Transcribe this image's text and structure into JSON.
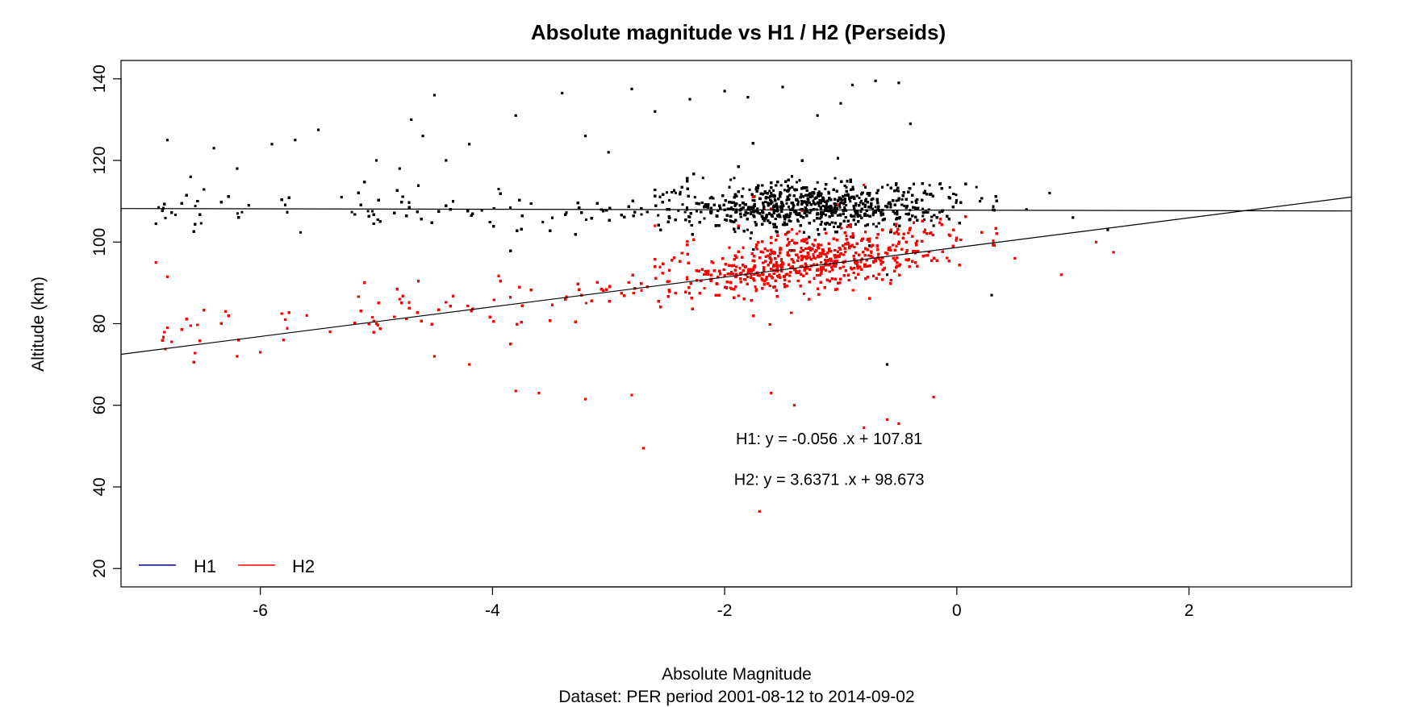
{
  "chart_data": {
    "type": "scatter",
    "title": "Absolute magnitude vs H1 / H2 (Perseids)",
    "xlabel": "Absolute Magnitude",
    "subtitle": "Dataset: PER period 2001-08-12 to 2014-09-02",
    "ylabel": "Altitude (km)",
    "xlim": [
      -7.2,
      3.4
    ],
    "ylim": [
      15.5,
      144.5
    ],
    "x_ticks": [
      -6,
      -4,
      -2,
      0,
      2
    ],
    "y_ticks": [
      20,
      40,
      60,
      80,
      100,
      120,
      140
    ],
    "grid": false,
    "legend_position": "bottom-left",
    "series": [
      {
        "name": "H1",
        "color": "#000000",
        "legend_color": "#00008B",
        "fit": {
          "slope": -0.056,
          "intercept": 107.81
        },
        "points": [
          [
            -6.9,
            104.5
          ],
          [
            -6.8,
            125.0
          ],
          [
            -6.6,
            116.0
          ],
          [
            -6.4,
            123.0
          ],
          [
            -6.2,
            118.0
          ],
          [
            -6.1,
            109.0
          ],
          [
            -5.9,
            124.0
          ],
          [
            -5.7,
            125.0
          ],
          [
            -5.5,
            127.5
          ],
          [
            -5.3,
            111.0
          ],
          [
            -5.0,
            120.0
          ],
          [
            -4.8,
            118.0
          ],
          [
            -4.7,
            130.0
          ],
          [
            -4.6,
            126.0
          ],
          [
            -4.4,
            120.0
          ],
          [
            -4.5,
            136.0
          ],
          [
            -3.8,
            131.0
          ],
          [
            -3.4,
            136.5
          ],
          [
            -2.8,
            137.5
          ],
          [
            -2.0,
            137.0
          ],
          [
            -1.8,
            135.5
          ],
          [
            -1.5,
            138.0
          ],
          [
            -0.9,
            138.5
          ],
          [
            -0.7,
            139.5
          ],
          [
            -0.5,
            139.0
          ],
          [
            -1.0,
            134.0
          ],
          [
            -0.4,
            129.0
          ],
          [
            -2.3,
            135.0
          ],
          [
            -1.2,
            131.0
          ],
          [
            -2.6,
            132.0
          ],
          [
            -3.2,
            126.0
          ],
          [
            -4.2,
            124.0
          ],
          [
            -3.0,
            122.0
          ],
          [
            -0.2,
            104.0
          ],
          [
            0.2,
            110.0
          ],
          [
            0.6,
            108.0
          ],
          [
            0.8,
            112.0
          ],
          [
            1.0,
            106.0
          ],
          [
            1.3,
            103.0
          ],
          [
            -0.6,
            92.0
          ],
          [
            0.3,
            87.0
          ],
          [
            -0.6,
            70.0
          ]
        ]
      },
      {
        "name": "H2",
        "color": "#FF0000",
        "legend_color": "#FF0000",
        "fit": {
          "slope": 3.6371,
          "intercept": 98.673
        },
        "points": [
          [
            -6.9,
            95.0
          ],
          [
            -6.8,
            91.5
          ],
          [
            -6.8,
            79.0
          ],
          [
            -6.6,
            79.5
          ],
          [
            -6.3,
            83.0
          ],
          [
            -6.2,
            72.0
          ],
          [
            -6.0,
            73.0
          ],
          [
            -5.8,
            76.0
          ],
          [
            -5.6,
            82.0
          ],
          [
            -5.4,
            78.0
          ],
          [
            -5.0,
            80.0
          ],
          [
            -4.8,
            86.0
          ],
          [
            -4.5,
            72.0
          ],
          [
            -4.2,
            70.0
          ],
          [
            -3.8,
            63.5
          ],
          [
            -3.6,
            63.0
          ],
          [
            -3.2,
            61.5
          ],
          [
            -2.8,
            62.5
          ],
          [
            -1.6,
            63.0
          ],
          [
            -1.4,
            60.0
          ],
          [
            -0.8,
            54.5
          ],
          [
            -0.6,
            56.5
          ],
          [
            -0.5,
            55.5
          ],
          [
            -0.2,
            62.0
          ],
          [
            -2.7,
            49.5
          ],
          [
            -1.7,
            34.0
          ],
          [
            0.5,
            96.0
          ],
          [
            0.9,
            92.0
          ],
          [
            1.2,
            100.0
          ],
          [
            1.35,
            97.5
          ],
          [
            -0.8,
            114.0
          ],
          [
            -1.6,
            108.0
          ],
          [
            -2.6,
            104.0
          ]
        ]
      }
    ],
    "annotations": [
      {
        "text": "H1: y = -0.056 .x + 107.81",
        "x": -1.1,
        "y": 50.5
      },
      {
        "text": "H2: y = 3.6371 .x + 98.673",
        "x": -1.1,
        "y": 40.5
      }
    ]
  }
}
